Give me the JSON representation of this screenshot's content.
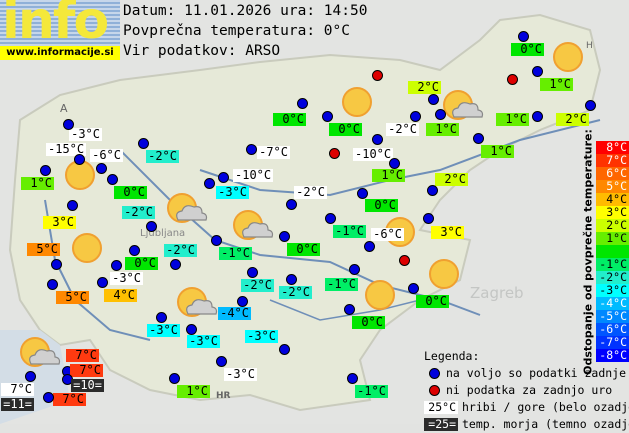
{
  "header": {
    "logo_text": "info",
    "logo_url": "www.informacije.si",
    "date_line": "Datum: 11.01.2026 ura: 14:50",
    "avg_line": "Povprečna temperatura: 0°C",
    "source_line": "Vir podatkov: ARSO"
  },
  "map_labels": {
    "austria": "A",
    "hungary": "H",
    "croatia": "HR",
    "city_ljubljana": "Ljubljana",
    "city_zagreb": "Zagreb"
  },
  "stations": [
    {
      "t": "-3°C",
      "kind": "m",
      "status": "ok"
    },
    {
      "t": "-15°C",
      "kind": "m",
      "status": "ok"
    },
    {
      "t": "-6°C",
      "kind": "m",
      "status": "ok"
    },
    {
      "t": "1°C",
      "kind": "a",
      "color": "#66ee00",
      "status": "ok"
    },
    {
      "t": "0°C",
      "kind": "a",
      "color": "#00e600",
      "status": "ok"
    },
    {
      "t": "-2°C",
      "kind": "a",
      "color": "#22eecc",
      "status": "ok"
    },
    {
      "t": "3°C",
      "kind": "a",
      "color": "#ffff00",
      "status": "ok"
    },
    {
      "t": "-2°C",
      "kind": "a",
      "color": "#22eecc",
      "status": "ok"
    },
    {
      "t": "5°C",
      "kind": "a",
      "color": "#ff8800",
      "status": "ok"
    },
    {
      "t": "0°C",
      "kind": "a",
      "color": "#00e600",
      "status": "ok"
    },
    {
      "t": "-3°C",
      "kind": "m",
      "status": "ok"
    },
    {
      "t": "5°C",
      "kind": "a",
      "color": "#ff8800",
      "status": "ok"
    },
    {
      "t": "4°C",
      "kind": "a",
      "color": "#ffc000",
      "status": "ok"
    },
    {
      "t": "-2°C",
      "kind": "a",
      "color": "#22eecc",
      "status": "ok"
    },
    {
      "t": "-3°C",
      "kind": "a",
      "color": "#00ffff",
      "status": "ok"
    },
    {
      "t": "-10°C",
      "kind": "m",
      "status": "ok"
    },
    {
      "t": "-7°C",
      "kind": "m",
      "status": "ok"
    },
    {
      "t": "0°C",
      "kind": "a",
      "color": "#00e600",
      "status": "ok"
    },
    {
      "t": "0°C",
      "kind": "a",
      "color": "#00e600",
      "status": "ok"
    },
    {
      "t": "-2°C",
      "kind": "m",
      "status": "ok"
    },
    {
      "t": "-10°C",
      "kind": "m",
      "status": "ok"
    },
    {
      "t": "1°C",
      "kind": "a",
      "color": "#66ee00",
      "status": "ok"
    },
    {
      "t": "-2°C",
      "kind": "m",
      "status": "ok"
    },
    {
      "t": "0°C",
      "kind": "a",
      "color": "#00e600",
      "status": "ok"
    },
    {
      "t": "-1°C",
      "kind": "a",
      "color": "#00ee66",
      "status": "ok"
    },
    {
      "t": "-6°C",
      "kind": "m",
      "status": "ok"
    },
    {
      "t": "0°C",
      "kind": "a",
      "color": "#00e600",
      "status": "ok"
    },
    {
      "t": "-1°C",
      "kind": "a",
      "color": "#00ee66",
      "status": "ok"
    },
    {
      "t": "-2°C",
      "kind": "a",
      "color": "#22eecc",
      "status": "ok"
    },
    {
      "t": "-2°C",
      "kind": "a",
      "color": "#22eecc",
      "status": "ok"
    },
    {
      "t": "-1°C",
      "kind": "a",
      "color": "#00ee66",
      "status": "ok"
    },
    {
      "t": "0°C",
      "kind": "a",
      "color": "#00e600",
      "status": "ok"
    },
    {
      "t": "0°C",
      "kind": "a",
      "color": "#00e600",
      "status": "ok"
    },
    {
      "t": "2°C",
      "kind": "a",
      "color": "#ccff00",
      "status": "ok"
    },
    {
      "t": "3°C",
      "kind": "a",
      "color": "#ffff00",
      "status": "ok"
    },
    {
      "t": "0°C",
      "kind": "a",
      "color": "#00e600",
      "status": "ok"
    },
    {
      "t": "1°C",
      "kind": "a",
      "color": "#66ee00",
      "status": "ok"
    },
    {
      "t": "2°C",
      "kind": "a",
      "color": "#ccff00",
      "status": "ok"
    },
    {
      "t": "1°C",
      "kind": "a",
      "color": "#66ee00",
      "status": "ok"
    },
    {
      "t": "2°C",
      "kind": "a",
      "color": "#ccff00",
      "status": "ok"
    },
    {
      "t": "1°C",
      "kind": "a",
      "color": "#66ee00",
      "status": "ok"
    },
    {
      "t": "1°C",
      "kind": "a",
      "color": "#66ee00",
      "status": "ok"
    },
    {
      "t": "-3°C",
      "kind": "a",
      "color": "#00ffff",
      "status": "ok"
    },
    {
      "t": "-3°C",
      "kind": "a",
      "color": "#00ffff",
      "status": "ok"
    },
    {
      "t": "-4°C",
      "kind": "a",
      "color": "#00bbff",
      "status": "ok"
    },
    {
      "t": "-3°C",
      "kind": "a",
      "color": "#00ffff",
      "status": "ok"
    },
    {
      "t": "-3°C",
      "kind": "m",
      "status": "ok"
    },
    {
      "t": "1°C",
      "kind": "a",
      "color": "#66ee00",
      "status": "ok"
    },
    {
      "t": "-1°C",
      "kind": "a",
      "color": "#00ee66",
      "status": "ok"
    },
    {
      "t": "7°C",
      "kind": "m",
      "status": "ok"
    },
    {
      "t": "=11=",
      "kind": "s",
      "status": "none"
    },
    {
      "t": "7°C",
      "kind": "a",
      "color": "#ff3a10",
      "status": "ok"
    },
    {
      "t": "7°C",
      "kind": "a",
      "color": "#ff3a10",
      "status": "ok"
    },
    {
      "t": "=10=",
      "kind": "s",
      "status": "none"
    },
    {
      "t": "7°C",
      "kind": "a",
      "color": "#ff3a10",
      "status": "ok"
    },
    {
      "t": "",
      "kind": "none",
      "status": "nd"
    },
    {
      "t": "",
      "kind": "none",
      "status": "nd"
    },
    {
      "t": "",
      "kind": "none",
      "status": "nd"
    },
    {
      "t": "",
      "kind": "none",
      "status": "nd"
    }
  ],
  "weather_icons": [
    "sun",
    "sun-cloud",
    "sun-cloud",
    "sun",
    "sun-cloud",
    "sun-cloud",
    "sun",
    "sun-cloud",
    "sun",
    "sun",
    "sun",
    "sun",
    "sun"
  ],
  "scale": {
    "title": "Odstopanje od povprečne temperature:",
    "cells": [
      {
        "label": "8°C",
        "color": "#ff0000",
        "text": "#ffffff"
      },
      {
        "label": "7°C",
        "color": "#ff3300",
        "text": "#ffffff"
      },
      {
        "label": "6°C",
        "color": "#ff6600",
        "text": "#ffffff"
      },
      {
        "label": "5°C",
        "color": "#ff8800",
        "text": "#ffffff"
      },
      {
        "label": "4°C",
        "color": "#ffbb00",
        "text": "#000000"
      },
      {
        "label": "3°C",
        "color": "#ffff00",
        "text": "#000000"
      },
      {
        "label": "2°C",
        "color": "#ccff00",
        "text": "#000000"
      },
      {
        "label": "1°C",
        "color": "#66ee00",
        "text": "#000000"
      },
      {
        "label": "",
        "color": "#00e600",
        "text": "#000000"
      },
      {
        "label": "-1°C",
        "color": "#00ee66",
        "text": "#000000"
      },
      {
        "label": "-2°C",
        "color": "#22eecc",
        "text": "#000000"
      },
      {
        "label": "-3°C",
        "color": "#00ffff",
        "text": "#000000"
      },
      {
        "label": "-4°C",
        "color": "#00bbff",
        "text": "#ffffff"
      },
      {
        "label": "-5°C",
        "color": "#0088ff",
        "text": "#ffffff"
      },
      {
        "label": "-6°C",
        "color": "#0055ff",
        "text": "#ffffff"
      },
      {
        "label": "-7°C",
        "color": "#0033ff",
        "text": "#ffffff"
      },
      {
        "label": "-8°C",
        "color": "#0000ff",
        "text": "#ffffff"
      }
    ]
  },
  "legend": {
    "title": "Legenda:",
    "available": "na voljo so podatki zadnje ure",
    "no_data": "ni podatka za zadnjo uro",
    "mountain_sample": "25°C",
    "mountain_text": "hribi / gore (belo ozadje)",
    "sea_sample": "=25=",
    "sea_text": "temp. morja (temno ozadje)"
  }
}
